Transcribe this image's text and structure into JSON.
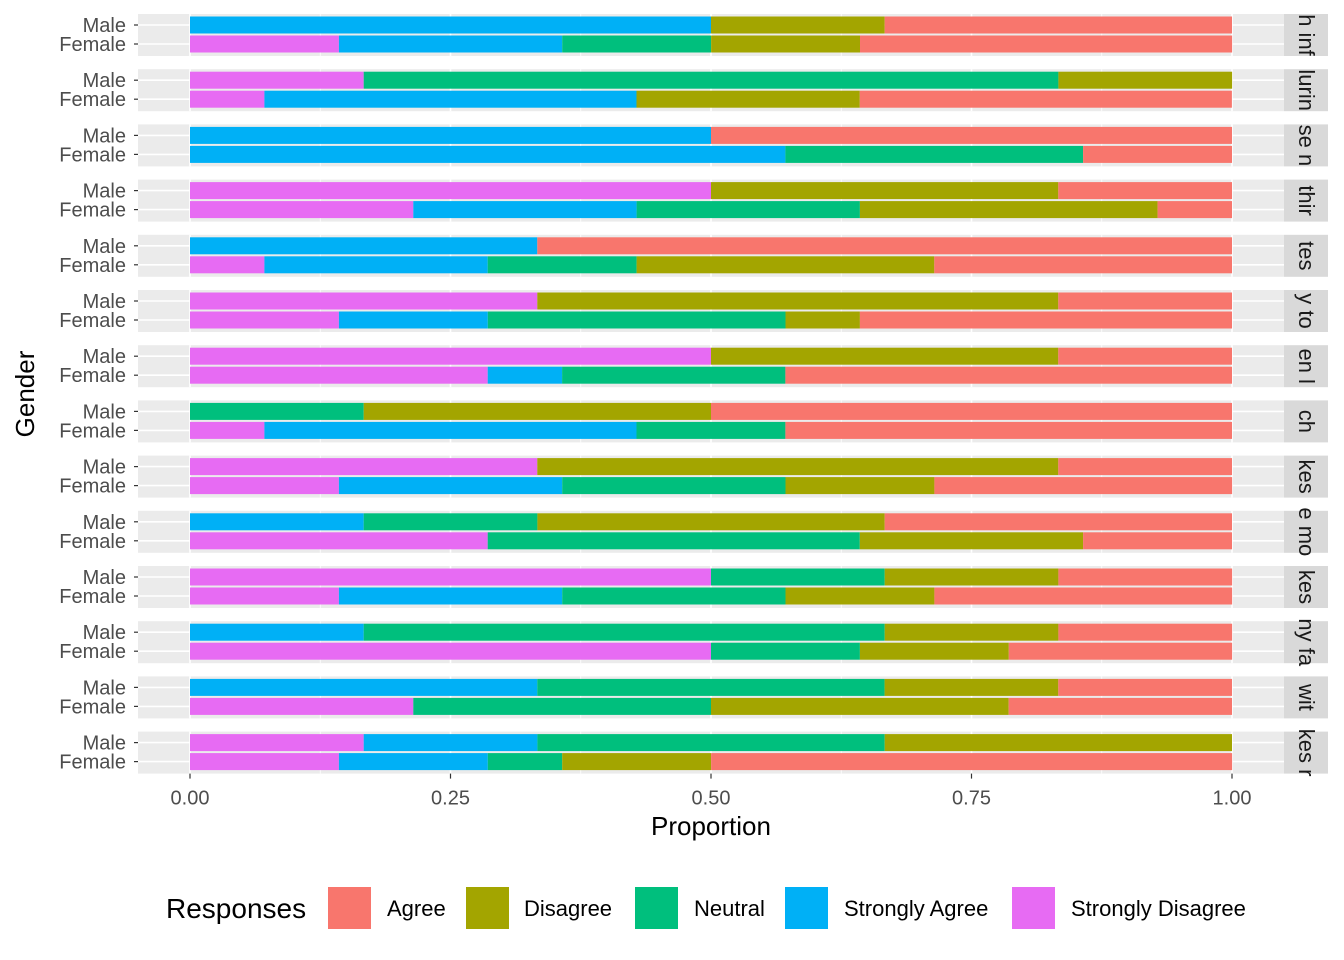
{
  "chart_data": {
    "type": "bar",
    "orientation": "horizontal",
    "stacked": "fill",
    "xlabel": "Proportion",
    "ylabel": "Gender",
    "xlim": [
      0,
      1
    ],
    "x_ticks": [
      0,
      0.25,
      0.5,
      0.75,
      1
    ],
    "x_tick_labels": [
      "0.00",
      "0.25",
      "0.50",
      "0.75",
      "1.00"
    ],
    "legend": {
      "title": "Responses",
      "position": "bottom",
      "entries": [
        {
          "name": "Agree",
          "color": "#F8766D"
        },
        {
          "name": "Disagree",
          "color": "#A3A500"
        },
        {
          "name": "Neutral",
          "color": "#00BF7D"
        },
        {
          "name": "Strongly Agree",
          "color": "#00B0F6"
        },
        {
          "name": "Strongly Disagree",
          "color": "#E76BF3"
        }
      ]
    },
    "stack_order": [
      "Strongly Disagree",
      "Strongly Agree",
      "Neutral",
      "Disagree",
      "Agree"
    ],
    "panels": [
      {
        "strip": "h inf",
        "groups": [
          {
            "label": "Male",
            "values": {
              "Strongly Disagree": 0,
              "Strongly Agree": 0.5,
              "Neutral": 0,
              "Disagree": 0.1667,
              "Agree": 0.3333
            }
          },
          {
            "label": "Female",
            "values": {
              "Strongly Disagree": 0.1429,
              "Strongly Agree": 0.2143,
              "Neutral": 0.1429,
              "Disagree": 0.1429,
              "Agree": 0.3571
            }
          }
        ]
      },
      {
        "strip": "lurin",
        "groups": [
          {
            "label": "Male",
            "values": {
              "Strongly Disagree": 0.1667,
              "Strongly Agree": 0,
              "Neutral": 0.6667,
              "Disagree": 0.1667,
              "Agree": 0
            }
          },
          {
            "label": "Female",
            "values": {
              "Strongly Disagree": 0.0714,
              "Strongly Agree": 0.3571,
              "Neutral": 0,
              "Disagree": 0.2143,
              "Agree": 0.3571
            }
          }
        ]
      },
      {
        "strip": "se n",
        "groups": [
          {
            "label": "Male",
            "values": {
              "Strongly Disagree": 0,
              "Strongly Agree": 0.5,
              "Neutral": 0,
              "Disagree": 0,
              "Agree": 0.5
            }
          },
          {
            "label": "Female",
            "values": {
              "Strongly Disagree": 0,
              "Strongly Agree": 0.5714,
              "Neutral": 0.2857,
              "Disagree": 0,
              "Agree": 0.1429
            }
          }
        ]
      },
      {
        "strip": "thir",
        "groups": [
          {
            "label": "Male",
            "values": {
              "Strongly Disagree": 0.5,
              "Strongly Agree": 0,
              "Neutral": 0,
              "Disagree": 0.3333,
              "Agree": 0.1667
            }
          },
          {
            "label": "Female",
            "values": {
              "Strongly Disagree": 0.2143,
              "Strongly Agree": 0.2143,
              "Neutral": 0.2143,
              "Disagree": 0.2857,
              "Agree": 0.0714
            }
          }
        ]
      },
      {
        "strip": "tes",
        "groups": [
          {
            "label": "Male",
            "values": {
              "Strongly Disagree": 0,
              "Strongly Agree": 0.3333,
              "Neutral": 0,
              "Disagree": 0,
              "Agree": 0.6667
            }
          },
          {
            "label": "Female",
            "values": {
              "Strongly Disagree": 0.0714,
              "Strongly Agree": 0.2143,
              "Neutral": 0.1429,
              "Disagree": 0.2857,
              "Agree": 0.2857
            }
          }
        ]
      },
      {
        "strip": "y to",
        "groups": [
          {
            "label": "Male",
            "values": {
              "Strongly Disagree": 0.3333,
              "Strongly Agree": 0,
              "Neutral": 0,
              "Disagree": 0.5,
              "Agree": 0.1667
            }
          },
          {
            "label": "Female",
            "values": {
              "Strongly Disagree": 0.1429,
              "Strongly Agree": 0.1429,
              "Neutral": 0.2857,
              "Disagree": 0.0714,
              "Agree": 0.3571
            }
          }
        ]
      },
      {
        "strip": "en l",
        "groups": [
          {
            "label": "Male",
            "values": {
              "Strongly Disagree": 0.5,
              "Strongly Agree": 0,
              "Neutral": 0,
              "Disagree": 0.3333,
              "Agree": 0.1667
            }
          },
          {
            "label": "Female",
            "values": {
              "Strongly Disagree": 0.2857,
              "Strongly Agree": 0.0714,
              "Neutral": 0.2143,
              "Disagree": 0,
              "Agree": 0.4286
            }
          }
        ]
      },
      {
        "strip": "ch",
        "groups": [
          {
            "label": "Male",
            "values": {
              "Strongly Disagree": 0,
              "Strongly Agree": 0,
              "Neutral": 0.1667,
              "Disagree": 0.3333,
              "Agree": 0.5
            }
          },
          {
            "label": "Female",
            "values": {
              "Strongly Disagree": 0.0714,
              "Strongly Agree": 0.3571,
              "Neutral": 0.1429,
              "Disagree": 0,
              "Agree": 0.4286
            }
          }
        ]
      },
      {
        "strip": "kes",
        "groups": [
          {
            "label": "Male",
            "values": {
              "Strongly Disagree": 0.3333,
              "Strongly Agree": 0,
              "Neutral": 0,
              "Disagree": 0.5,
              "Agree": 0.1667
            }
          },
          {
            "label": "Female",
            "values": {
              "Strongly Disagree": 0.1429,
              "Strongly Agree": 0.2143,
              "Neutral": 0.2143,
              "Disagree": 0.1429,
              "Agree": 0.2857
            }
          }
        ]
      },
      {
        "strip": "e mo",
        "groups": [
          {
            "label": "Male",
            "values": {
              "Strongly Disagree": 0,
              "Strongly Agree": 0.1667,
              "Neutral": 0.1667,
              "Disagree": 0.3333,
              "Agree": 0.3333
            }
          },
          {
            "label": "Female",
            "values": {
              "Strongly Disagree": 0.2857,
              "Strongly Agree": 0,
              "Neutral": 0.3571,
              "Disagree": 0.2143,
              "Agree": 0.1429
            }
          }
        ]
      },
      {
        "strip": "kes",
        "groups": [
          {
            "label": "Male",
            "values": {
              "Strongly Disagree": 0.5,
              "Strongly Agree": 0,
              "Neutral": 0.1667,
              "Disagree": 0.1667,
              "Agree": 0.1667
            }
          },
          {
            "label": "Female",
            "values": {
              "Strongly Disagree": 0.1429,
              "Strongly Agree": 0.2143,
              "Neutral": 0.2143,
              "Disagree": 0.1429,
              "Agree": 0.2857
            }
          }
        ]
      },
      {
        "strip": "ny fa",
        "groups": [
          {
            "label": "Male",
            "values": {
              "Strongly Disagree": 0,
              "Strongly Agree": 0.1667,
              "Neutral": 0.5,
              "Disagree": 0.1667,
              "Agree": 0.1667
            }
          },
          {
            "label": "Female",
            "values": {
              "Strongly Disagree": 0.5,
              "Strongly Agree": 0,
              "Neutral": 0.1429,
              "Disagree": 0.1429,
              "Agree": 0.2143
            }
          }
        ]
      },
      {
        "strip": "wit",
        "groups": [
          {
            "label": "Male",
            "values": {
              "Strongly Disagree": 0,
              "Strongly Agree": 0.3333,
              "Neutral": 0.3333,
              "Disagree": 0.1667,
              "Agree": 0.1667
            }
          },
          {
            "label": "Female",
            "values": {
              "Strongly Disagree": 0.2143,
              "Strongly Agree": 0,
              "Neutral": 0.2857,
              "Disagree": 0.2857,
              "Agree": 0.2143
            }
          }
        ]
      },
      {
        "strip": "kes r",
        "groups": [
          {
            "label": "Male",
            "values": {
              "Strongly Disagree": 0.1667,
              "Strongly Agree": 0.1667,
              "Neutral": 0.3333,
              "Disagree": 0.3333,
              "Agree": 0
            }
          },
          {
            "label": "Female",
            "values": {
              "Strongly Disagree": 0.1429,
              "Strongly Agree": 0.1429,
              "Neutral": 0.0714,
              "Disagree": 0.1429,
              "Agree": 0.5
            }
          }
        ]
      }
    ]
  }
}
